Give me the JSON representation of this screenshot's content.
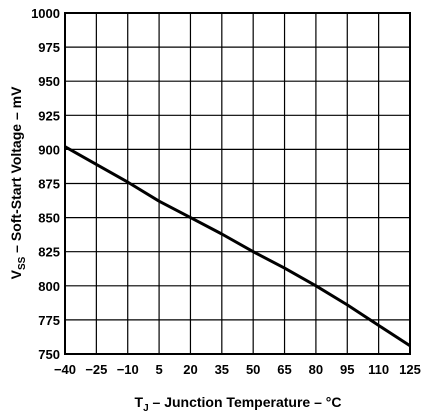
{
  "chart_data": {
    "type": "line",
    "xlabel": {
      "main": "T",
      "sub": "J",
      "rest": " – Junction Temperature – °C"
    },
    "ylabel": {
      "main": "V",
      "sub": "SS",
      "rest": " – Soft-Start Voltage – mV"
    },
    "x_ticks": [
      -40,
      -25,
      -10,
      5,
      20,
      35,
      50,
      65,
      80,
      95,
      110,
      125
    ],
    "x_tick_labels": [
      "−40",
      "−25",
      "−10",
      "5",
      "20",
      "35",
      "50",
      "65",
      "80",
      "95",
      "110",
      "125"
    ],
    "y_ticks": [
      750,
      775,
      800,
      825,
      850,
      875,
      900,
      925,
      950,
      975,
      1000
    ],
    "xlim": [
      -40,
      125
    ],
    "ylim": [
      750,
      1000
    ],
    "grid": true,
    "series": [
      {
        "x": [
          -40,
          -25,
          -10,
          5,
          20,
          35,
          50,
          65,
          80,
          95,
          110,
          125
        ],
        "y": [
          902,
          889,
          876,
          862,
          850,
          838,
          825,
          813,
          800,
          786,
          771,
          756
        ]
      }
    ]
  },
  "colors": {
    "line": "#000000",
    "grid": "#000000",
    "background": "#ffffff"
  }
}
